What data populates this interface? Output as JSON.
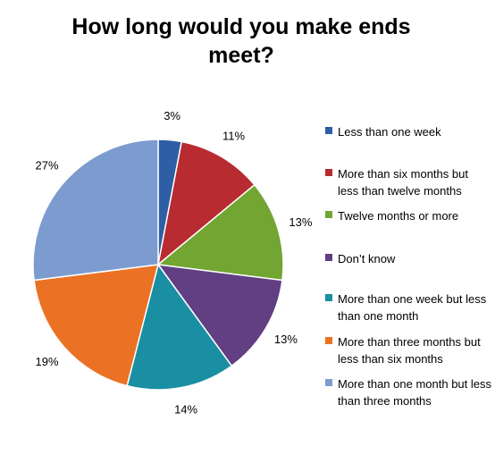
{
  "chart_data": {
    "type": "pie",
    "title": "How long would you make ends meet?",
    "slices": [
      {
        "label": "Less than one week",
        "value": 3,
        "value_label": "3%",
        "color": "#2E5EA4"
      },
      {
        "label": "More than six months but less than twelve months",
        "value": 11,
        "value_label": "11%",
        "color": "#B72B31"
      },
      {
        "label": "Twelve months or more",
        "value": 13,
        "value_label": "13%",
        "color": "#72A532"
      },
      {
        "label": "Don’t know",
        "value": 13,
        "value_label": "13%",
        "color": "#613F82"
      },
      {
        "label": "More than one week but less than one month",
        "value": 14,
        "value_label": "14%",
        "color": "#1A8EA3"
      },
      {
        "label": "More than three months but less than six months",
        "value": 19,
        "value_label": "19%",
        "color": "#EB7224"
      },
      {
        "label": "More than one month but less than three months",
        "value": 27,
        "value_label": "27%",
        "color": "#7C9BCF"
      }
    ],
    "legend_position": "right",
    "start_angle": "12 o'clock",
    "direction": "clockwise"
  }
}
